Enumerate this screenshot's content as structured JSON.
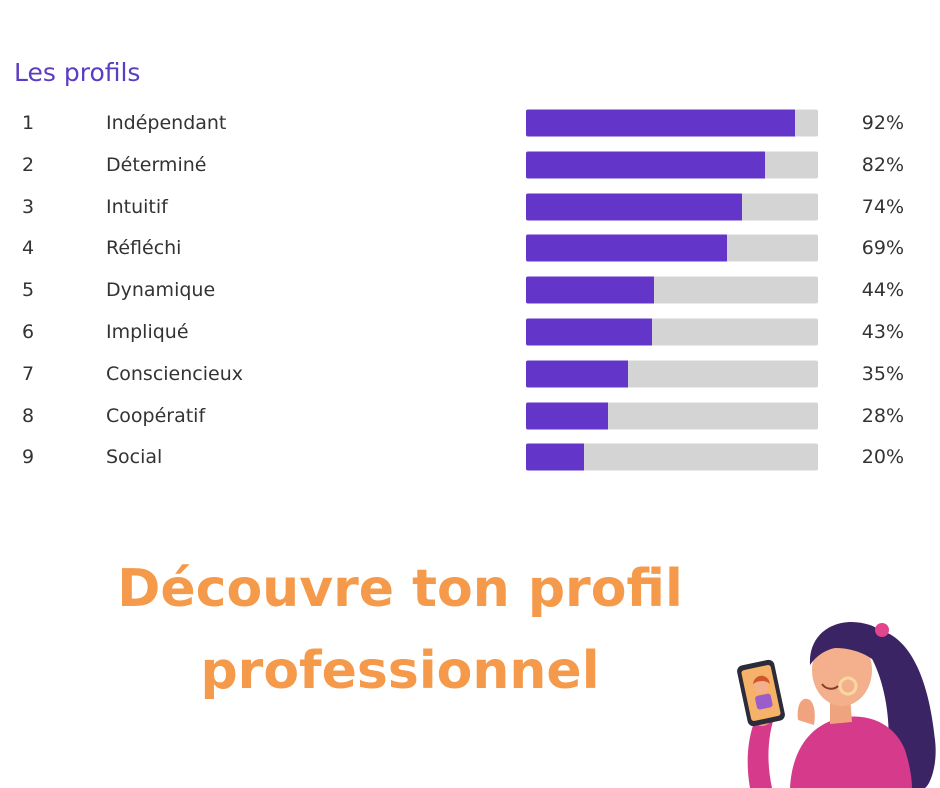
{
  "section_title": "Les profils",
  "headline": {
    "line1": "Découvre ton profil",
    "line2": "professionnel"
  },
  "colors": {
    "accent": "#6336c9",
    "track": "#d4d4d4",
    "headline": "#f5994a",
    "title": "#5b3cc4"
  },
  "chart_data": {
    "type": "bar",
    "orientation": "horizontal",
    "title": "Les profils",
    "xlim": [
      0,
      100
    ],
    "unit": "%",
    "grid": false,
    "legend": "none",
    "rows": [
      {
        "rank": "1",
        "label": "Indépendant",
        "value": 92,
        "value_label": "92%"
      },
      {
        "rank": "2",
        "label": "Déterminé",
        "value": 82,
        "value_label": "82%"
      },
      {
        "rank": "3",
        "label": "Intuitif",
        "value": 74,
        "value_label": "74%"
      },
      {
        "rank": "4",
        "label": "Réfléchi",
        "value": 69,
        "value_label": "69%"
      },
      {
        "rank": "5",
        "label": "Dynamique",
        "value": 44,
        "value_label": "44%"
      },
      {
        "rank": "6",
        "label": "Impliqué",
        "value": 43,
        "value_label": "43%"
      },
      {
        "rank": "7",
        "label": "Consciencieux",
        "value": 35,
        "value_label": "35%"
      },
      {
        "rank": "8",
        "label": "Coopératif",
        "value": 28,
        "value_label": "28%"
      },
      {
        "rank": "9",
        "label": "Social",
        "value": 20,
        "value_label": "20%"
      }
    ]
  },
  "illustration": {
    "icon": "woman-holding-phone-illustration"
  }
}
